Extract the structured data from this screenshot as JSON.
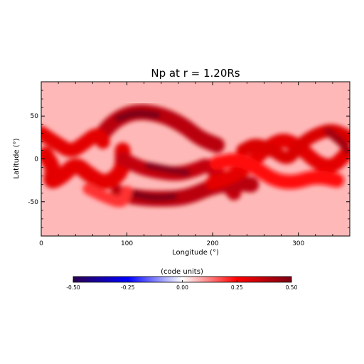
{
  "chart_data": {
    "type": "heatmap",
    "title": "Np at r = 1.20Rs",
    "xlabel": "Longitude (°)",
    "ylabel": "Latitude (°)",
    "xlim": [
      0,
      360
    ],
    "ylim": [
      -90,
      90
    ],
    "x_ticks": [
      0,
      100,
      200,
      300
    ],
    "x_tick_labels": [
      "0",
      "100",
      "200",
      "300"
    ],
    "y_ticks": [
      -50,
      0,
      50
    ],
    "y_tick_labels": [
      "-50",
      "0",
      "50"
    ],
    "colorbar": {
      "label": "(code units)",
      "range": [
        -0.5,
        0.5
      ],
      "ticks": [
        -0.5,
        -0.25,
        0,
        0.25,
        0.5
      ],
      "tick_labels": [
        "-0.50",
        "-0.25",
        "0.00",
        "0.25",
        "0.50"
      ],
      "colors": [
        "#2b0050",
        "#0000ff",
        "#ffffff",
        "#ff0000",
        "#7a0014"
      ]
    },
    "background_value": 0.07,
    "features": [
      {
        "name": "upper-band",
        "points": [
          [
            68,
            25
          ],
          [
            85,
            45
          ],
          [
            110,
            56
          ],
          [
            140,
            52
          ],
          [
            165,
            40
          ],
          [
            185,
            24
          ],
          [
            205,
            16
          ]
        ],
        "value": 0.38,
        "width": 22
      },
      {
        "name": "upper-band-core",
        "points": [
          [
            90,
            47
          ],
          [
            110,
            54
          ],
          [
            135,
            51
          ]
        ],
        "value": 0.5,
        "width": 10
      },
      {
        "name": "left-arc",
        "points": [
          [
            0,
            30
          ],
          [
            18,
            18
          ],
          [
            35,
            8
          ],
          [
            50,
            18
          ],
          [
            65,
            30
          ],
          [
            72,
            20
          ]
        ],
        "value": 0.3,
        "width": 20
      },
      {
        "name": "left-lobe",
        "points": [
          [
            5,
            5
          ],
          [
            15,
            -12
          ],
          [
            10,
            -28
          ],
          [
            25,
            -20
          ],
          [
            40,
            -5
          ],
          [
            55,
            -18
          ],
          [
            75,
            -30
          ],
          [
            95,
            -15
          ],
          [
            95,
            10
          ]
        ],
        "value": 0.3,
        "width": 22
      },
      {
        "name": "middle-s",
        "points": [
          [
            95,
            0
          ],
          [
            115,
            -10
          ],
          [
            135,
            -15
          ],
          [
            160,
            -18
          ],
          [
            182,
            -12
          ],
          [
            195,
            -6
          ],
          [
            210,
            -22
          ],
          [
            225,
            -40
          ]
        ],
        "value": 0.36,
        "width": 20
      },
      {
        "name": "middle-core",
        "points": [
          [
            125,
            -8
          ],
          [
            150,
            -13
          ],
          [
            170,
            -16
          ]
        ],
        "value": 0.48,
        "width": 10
      },
      {
        "name": "lower-band",
        "points": [
          [
            90,
            -40
          ],
          [
            110,
            -45
          ],
          [
            140,
            -47
          ],
          [
            170,
            -45
          ],
          [
            200,
            -32
          ],
          [
            228,
            -28
          ],
          [
            245,
            -30
          ]
        ],
        "value": 0.38,
        "width": 22
      },
      {
        "name": "lower-band-core",
        "points": [
          [
            105,
            -40
          ],
          [
            130,
            -46
          ],
          [
            155,
            -44
          ]
        ],
        "value": 0.5,
        "width": 9
      },
      {
        "name": "right-wave",
        "points": [
          [
            200,
            -28
          ],
          [
            225,
            -20
          ],
          [
            245,
            -5
          ],
          [
            262,
            12
          ],
          [
            278,
            22
          ],
          [
            292,
            20
          ],
          [
            308,
            8
          ],
          [
            322,
            -5
          ],
          [
            340,
            -10
          ],
          [
            355,
            5
          ]
        ],
        "value": 0.3,
        "width": 20
      },
      {
        "name": "right-loop",
        "points": [
          [
            235,
            10
          ],
          [
            250,
            18
          ],
          [
            270,
            10
          ],
          [
            288,
            -2
          ],
          [
            300,
            15
          ],
          [
            318,
            28
          ],
          [
            340,
            35
          ],
          [
            360,
            25
          ]
        ],
        "value": 0.32,
        "width": 18
      },
      {
        "name": "right-edge",
        "points": [
          [
            335,
            32
          ],
          [
            350,
            20
          ],
          [
            358,
            10
          ]
        ],
        "value": 0.42,
        "width": 12
      },
      {
        "name": "lower-left-lobe",
        "points": [
          [
            55,
            -35
          ],
          [
            75,
            -45
          ],
          [
            95,
            -52
          ],
          [
            100,
            -38
          ]
        ],
        "value": 0.2,
        "width": 16
      },
      {
        "name": "equator-band",
        "points": [
          [
            205,
            -5
          ],
          [
            230,
            0
          ],
          [
            250,
            -10
          ],
          [
            272,
            -25
          ],
          [
            295,
            -28
          ],
          [
            320,
            -20
          ],
          [
            345,
            -25
          ]
        ],
        "value": 0.24,
        "width": 20
      }
    ]
  }
}
